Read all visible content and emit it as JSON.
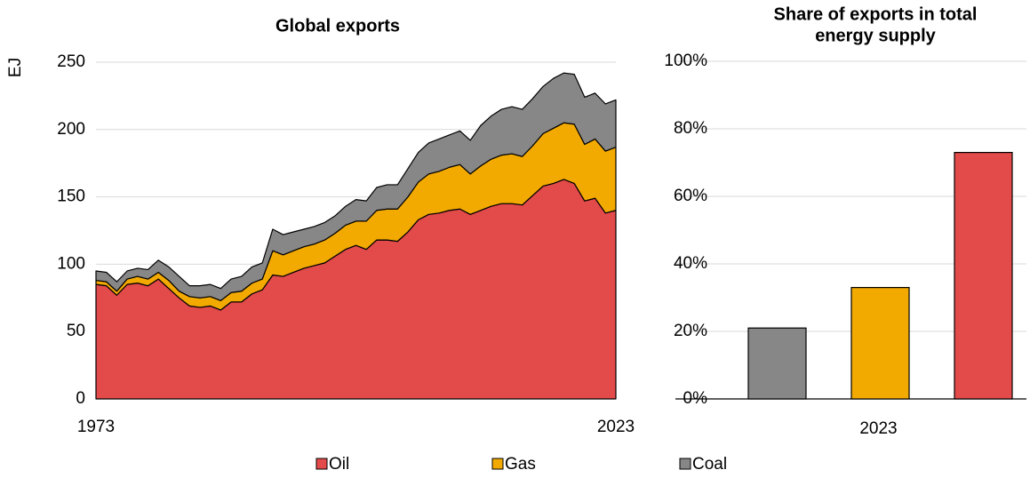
{
  "chart_data": [
    {
      "type": "stacked_area",
      "title": "Global exports",
      "y_label": "EJ",
      "x": [
        1973,
        1974,
        1975,
        1976,
        1977,
        1978,
        1979,
        1980,
        1981,
        1982,
        1983,
        1984,
        1985,
        1986,
        1987,
        1988,
        1989,
        1990,
        1991,
        1992,
        1993,
        1994,
        1995,
        1996,
        1997,
        1998,
        1999,
        2000,
        2001,
        2002,
        2003,
        2004,
        2005,
        2006,
        2007,
        2008,
        2009,
        2010,
        2011,
        2012,
        2013,
        2014,
        2015,
        2016,
        2017,
        2018,
        2019,
        2020,
        2021,
        2022,
        2023
      ],
      "xlim": [
        1973,
        2023
      ],
      "xticks": [
        1973,
        2023
      ],
      "ylim": [
        0,
        250
      ],
      "yticks": [
        0,
        50,
        100,
        150,
        200,
        250
      ],
      "grid": true,
      "series": [
        {
          "name": "Oil",
          "color": "#e34a4a",
          "values": [
            85,
            84,
            77,
            85,
            86,
            84,
            89,
            82,
            75,
            69,
            68,
            69,
            66,
            72,
            72,
            78,
            81,
            92,
            91,
            94,
            97,
            99,
            101,
            106,
            111,
            114,
            111,
            118,
            118,
            117,
            124,
            133,
            137,
            138,
            140,
            141,
            137,
            140,
            143,
            145,
            145,
            144,
            151,
            158,
            160,
            163,
            160,
            147,
            149,
            138,
            140
          ]
        },
        {
          "name": "Gas",
          "color": "#f2a900",
          "values": [
            3,
            3,
            3,
            4,
            5,
            5,
            5,
            6,
            5,
            7,
            7,
            7,
            7,
            7,
            8,
            8,
            8,
            18,
            16,
            16,
            16,
            16,
            17,
            17,
            18,
            18,
            21,
            22,
            23,
            24,
            26,
            28,
            30,
            31,
            32,
            33,
            30,
            33,
            35,
            36,
            37,
            36,
            37,
            39,
            41,
            42,
            44,
            42,
            44,
            46,
            47
          ]
        },
        {
          "name": "Coal",
          "color": "#878787",
          "values": [
            7,
            7,
            7,
            6,
            6,
            7,
            9,
            10,
            11,
            8,
            9,
            9,
            9,
            10,
            11,
            12,
            12,
            16,
            15,
            14,
            13,
            13,
            13,
            13,
            14,
            16,
            15,
            17,
            18,
            18,
            21,
            22,
            23,
            24,
            24,
            25,
            25,
            30,
            32,
            34,
            35,
            35,
            35,
            35,
            37,
            37,
            37,
            35,
            34,
            35,
            35
          ]
        }
      ],
      "legend": "bottom"
    },
    {
      "type": "bar",
      "title": [
        "Share of exports in total",
        "energy supply"
      ],
      "categories": [
        "2023"
      ],
      "ylim": [
        0,
        100
      ],
      "yticks": [
        {
          "value": 0,
          "label": "0%"
        },
        {
          "value": 20,
          "label": "20%"
        },
        {
          "value": 40,
          "label": "40%"
        },
        {
          "value": 60,
          "label": "60%"
        },
        {
          "value": 80,
          "label": "80%"
        },
        {
          "value": 100,
          "label": "100%"
        }
      ],
      "grid": true,
      "series": [
        {
          "color": "#878787",
          "values": [
            21
          ]
        },
        {
          "color": "#f2a900",
          "values": [
            33
          ]
        },
        {
          "color": "#e34a4a",
          "values": [
            73
          ]
        }
      ]
    }
  ]
}
